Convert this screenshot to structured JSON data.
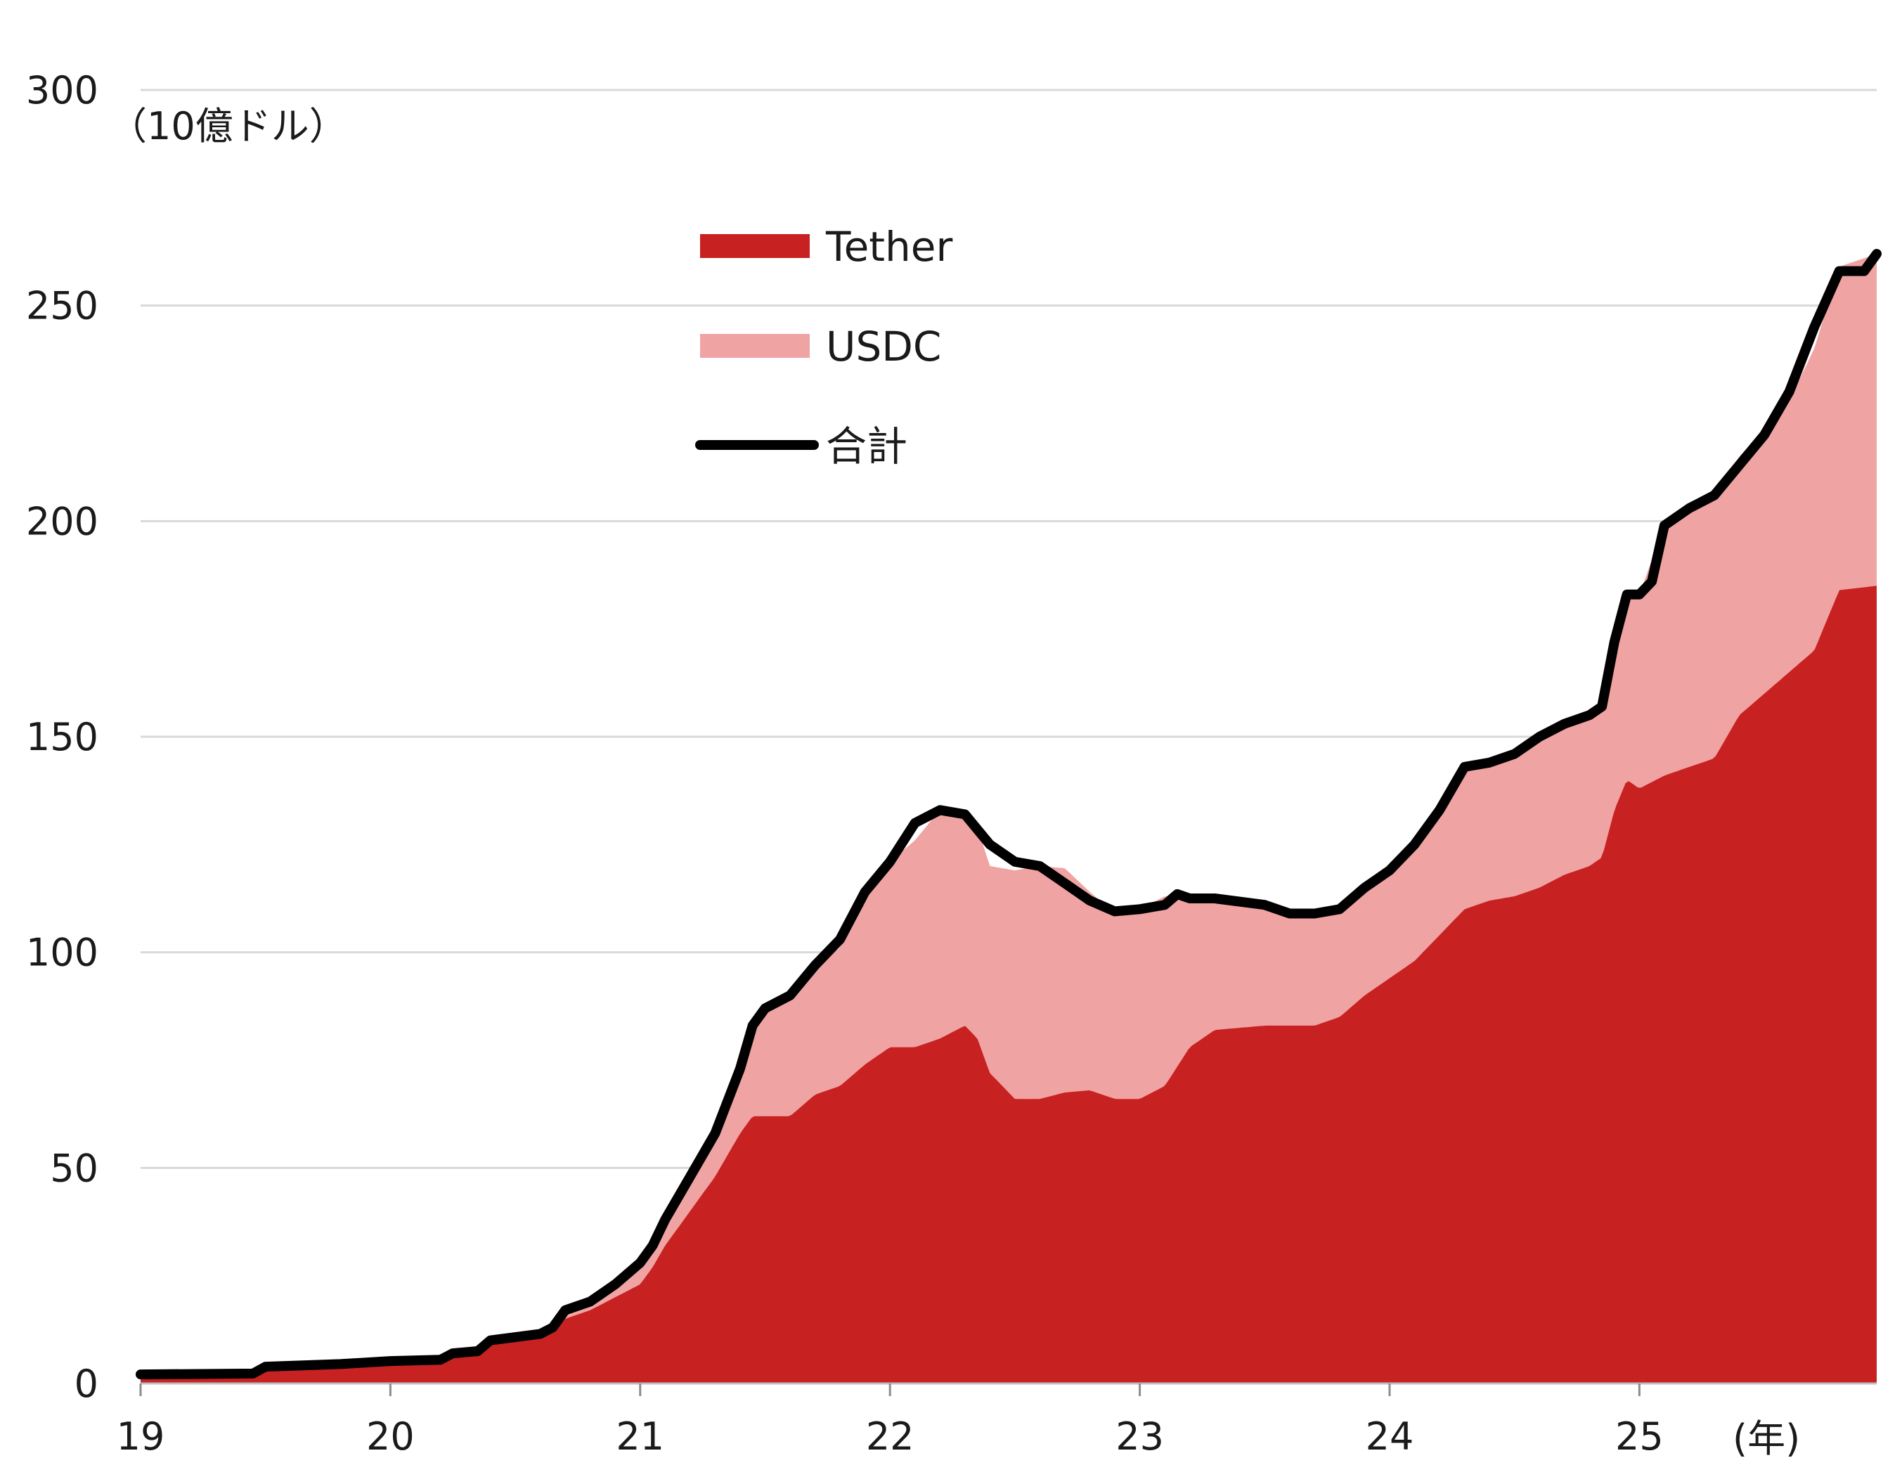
{
  "chart_data": {
    "type": "area",
    "title": "",
    "ylabel": "（10億ドル）",
    "xlabel": "(年)",
    "ylim": [
      0,
      300
    ],
    "xlim": [
      19,
      25.95
    ],
    "yticks": [
      0,
      50,
      100,
      150,
      200,
      250,
      300
    ],
    "xticks": [
      19,
      20,
      21,
      22,
      23,
      24,
      25
    ],
    "xtick_labels": [
      "19",
      "20",
      "21",
      "22",
      "23",
      24,
      "25"
    ],
    "grid": true,
    "legend": "top-center",
    "colors": {
      "tether": "#c82121",
      "usdc": "#f0a3a3",
      "total": "#000000",
      "grid": "#d9d9d9"
    },
    "series": [
      {
        "name": "Tether",
        "kind": "stacked-area",
        "points": [
          [
            19.0,
            1.9
          ],
          [
            19.45,
            2.0
          ],
          [
            19.5,
            3.5
          ],
          [
            19.8,
            4.0
          ],
          [
            20.0,
            4.6
          ],
          [
            20.2,
            4.8
          ],
          [
            20.25,
            6.0
          ],
          [
            20.35,
            6.5
          ],
          [
            20.4,
            9.0
          ],
          [
            20.6,
            10.5
          ],
          [
            20.65,
            12.0
          ],
          [
            20.7,
            15.0
          ],
          [
            20.8,
            17.0
          ],
          [
            20.9,
            20.0
          ],
          [
            21.0,
            23.0
          ],
          [
            21.05,
            27.0
          ],
          [
            21.1,
            32.0
          ],
          [
            21.2,
            40.0
          ],
          [
            21.3,
            48.0
          ],
          [
            21.4,
            58.0
          ],
          [
            21.45,
            62.0
          ],
          [
            21.6,
            62.0
          ],
          [
            21.7,
            67.0
          ],
          [
            21.8,
            69.0
          ],
          [
            21.9,
            74.0
          ],
          [
            22.0,
            78.0
          ],
          [
            22.1,
            78.0
          ],
          [
            22.2,
            80.0
          ],
          [
            22.3,
            83.0
          ],
          [
            22.35,
            80.0
          ],
          [
            22.4,
            72.0
          ],
          [
            22.5,
            66.0
          ],
          [
            22.6,
            66.0
          ],
          [
            22.7,
            67.5
          ],
          [
            22.8,
            68.0
          ],
          [
            22.9,
            66.0
          ],
          [
            23.0,
            66.0
          ],
          [
            23.1,
            69.0
          ],
          [
            23.2,
            78.0
          ],
          [
            23.3,
            82.0
          ],
          [
            23.5,
            83.0
          ],
          [
            23.7,
            83.0
          ],
          [
            23.8,
            85.0
          ],
          [
            23.9,
            90.0
          ],
          [
            24.0,
            94.0
          ],
          [
            24.1,
            98.0
          ],
          [
            24.2,
            104.0
          ],
          [
            24.3,
            110.0
          ],
          [
            24.4,
            112.0
          ],
          [
            24.5,
            113.0
          ],
          [
            24.6,
            115.0
          ],
          [
            24.7,
            118.0
          ],
          [
            24.8,
            120.0
          ],
          [
            24.85,
            122.0
          ],
          [
            24.9,
            133.0
          ],
          [
            24.95,
            140.0
          ],
          [
            25.0,
            138.0
          ],
          [
            25.1,
            141.0
          ],
          [
            25.3,
            145.0
          ],
          [
            25.4,
            155.0
          ],
          [
            25.5,
            160.0
          ],
          [
            25.6,
            165.0
          ],
          [
            25.7,
            170.0
          ],
          [
            25.8,
            184.0
          ],
          [
            25.95,
            185.0
          ]
        ]
      },
      {
        "name": "USDC",
        "kind": "stacked-area",
        "points": [
          [
            19.0,
            0.2
          ],
          [
            19.5,
            0.4
          ],
          [
            20.0,
            0.6
          ],
          [
            20.5,
            0.9
          ],
          [
            20.7,
            1.8
          ],
          [
            20.9,
            3.0
          ],
          [
            21.0,
            5.0
          ],
          [
            21.1,
            5.5
          ],
          [
            21.2,
            7.0
          ],
          [
            21.3,
            10.0
          ],
          [
            21.4,
            15.0
          ],
          [
            21.5,
            26.0
          ],
          [
            21.6,
            28.0
          ],
          [
            21.7,
            30.0
          ],
          [
            21.8,
            32.0
          ],
          [
            21.9,
            40.0
          ],
          [
            22.0,
            43.0
          ],
          [
            22.1,
            48.0
          ],
          [
            22.2,
            53.0
          ],
          [
            22.3,
            50.0
          ],
          [
            22.4,
            48.0
          ],
          [
            22.5,
            53.0
          ],
          [
            22.6,
            54.0
          ],
          [
            22.7,
            52.0
          ],
          [
            22.8,
            46.0
          ],
          [
            22.9,
            43.0
          ],
          [
            23.0,
            44.0
          ],
          [
            23.1,
            44.0
          ],
          [
            23.2,
            35.0
          ],
          [
            23.3,
            31.0
          ],
          [
            23.5,
            28.0
          ],
          [
            23.7,
            26.0
          ],
          [
            23.8,
            25.0
          ],
          [
            23.9,
            25.0
          ],
          [
            24.0,
            25.0
          ],
          [
            24.1,
            27.0
          ],
          [
            24.2,
            29.0
          ],
          [
            24.3,
            33.0
          ],
          [
            24.4,
            33.0
          ],
          [
            24.5,
            33.0
          ],
          [
            24.6,
            35.0
          ],
          [
            24.7,
            35.0
          ],
          [
            24.8,
            35.0
          ],
          [
            24.85,
            35.0
          ],
          [
            24.9,
            39.0
          ],
          [
            24.95,
            43.0
          ],
          [
            25.0,
            45.0
          ],
          [
            25.1,
            58.0
          ],
          [
            25.3,
            61.0
          ],
          [
            25.4,
            60.0
          ],
          [
            25.5,
            61.0
          ],
          [
            25.6,
            63.0
          ],
          [
            25.7,
            70.0
          ],
          [
            25.8,
            75.0
          ],
          [
            25.95,
            77.0
          ]
        ]
      },
      {
        "name": "合計",
        "kind": "line",
        "points": [
          [
            19.0,
            2.1
          ],
          [
            19.45,
            2.3
          ],
          [
            19.5,
            3.9
          ],
          [
            19.8,
            4.5
          ],
          [
            20.0,
            5.2
          ],
          [
            20.2,
            5.5
          ],
          [
            20.25,
            7.0
          ],
          [
            20.35,
            7.5
          ],
          [
            20.4,
            10.0
          ],
          [
            20.6,
            11.5
          ],
          [
            20.65,
            13.0
          ],
          [
            20.7,
            17.0
          ],
          [
            20.8,
            19.0
          ],
          [
            20.9,
            23.0
          ],
          [
            21.0,
            28.0
          ],
          [
            21.05,
            32.0
          ],
          [
            21.1,
            38.0
          ],
          [
            21.2,
            48.0
          ],
          [
            21.3,
            58.0
          ],
          [
            21.4,
            73.0
          ],
          [
            21.45,
            83.0
          ],
          [
            21.5,
            87.0
          ],
          [
            21.6,
            90.0
          ],
          [
            21.7,
            97.0
          ],
          [
            21.8,
            103.0
          ],
          [
            21.9,
            114.0
          ],
          [
            22.0,
            121.0
          ],
          [
            22.1,
            130.0
          ],
          [
            22.2,
            133.0
          ],
          [
            22.3,
            132.0
          ],
          [
            22.4,
            125.0
          ],
          [
            22.5,
            121.0
          ],
          [
            22.6,
            120.0
          ],
          [
            22.7,
            116.0
          ],
          [
            22.8,
            112.0
          ],
          [
            22.9,
            109.5
          ],
          [
            23.0,
            110.0
          ],
          [
            23.1,
            111.0
          ],
          [
            23.15,
            113.5
          ],
          [
            23.2,
            112.5
          ],
          [
            23.3,
            112.5
          ],
          [
            23.5,
            111.0
          ],
          [
            23.6,
            109.0
          ],
          [
            23.7,
            109.0
          ],
          [
            23.8,
            110.0
          ],
          [
            23.9,
            115.0
          ],
          [
            24.0,
            119.0
          ],
          [
            24.1,
            125.0
          ],
          [
            24.2,
            133.0
          ],
          [
            24.3,
            143.0
          ],
          [
            24.4,
            144.0
          ],
          [
            24.5,
            146.0
          ],
          [
            24.6,
            150.0
          ],
          [
            24.7,
            153.0
          ],
          [
            24.8,
            155.0
          ],
          [
            24.85,
            157.0
          ],
          [
            24.9,
            172.0
          ],
          [
            24.95,
            183.0
          ],
          [
            25.0,
            183.0
          ],
          [
            25.05,
            186.0
          ],
          [
            25.1,
            199.0
          ],
          [
            25.2,
            203.0
          ],
          [
            25.3,
            206.0
          ],
          [
            25.4,
            213.0
          ],
          [
            25.5,
            220.0
          ],
          [
            25.6,
            230.0
          ],
          [
            25.7,
            245.0
          ],
          [
            25.8,
            258.0
          ],
          [
            25.9,
            258.0
          ],
          [
            25.95,
            262.0
          ]
        ]
      }
    ]
  }
}
